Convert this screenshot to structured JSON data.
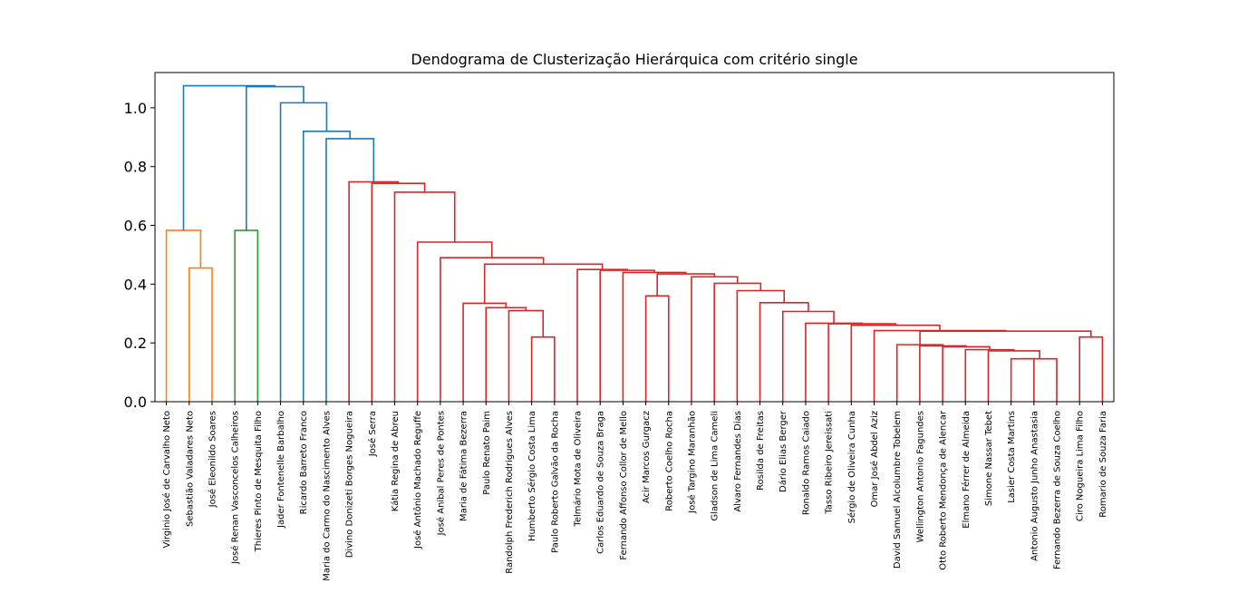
{
  "chart_data": {
    "type": "dendrogram",
    "title": "Dendograma de Clusterização Hierárquica com critério single",
    "xlabel": "",
    "ylabel": "",
    "ylim": [
      0,
      1.12
    ],
    "yticks": [
      "0.0",
      "0.2",
      "0.4",
      "0.6",
      "0.8",
      "1.0"
    ],
    "grid": false,
    "leaves": [
      "Virginio José de Carvalho Neto",
      "Sebastião Valadares Neto",
      "José Eleonildo Soares",
      "José Renan Vasconcelos Calheiros",
      "Thieres Pinto de Mesquita Filho",
      "Jader Fontenelle Barbalho",
      "Ricardo Barreto Franco",
      "Maria do Carmo do Nascimento Alves",
      "Divino Donizeti Borges Nogueira",
      "José Serra",
      "Kátia Regina de Abreu",
      "José Antônio Machado Reguffe",
      "José Aníbal Peres de Pontes",
      "Maria de Fátima Bezerra",
      "Paulo Renato Paim",
      "Randolph Frederich Rodrigues Alves",
      "Humberto Sérgio Costa Lima",
      "Paulo Roberto Galvão da Rocha",
      "Telmário Mota de Oliveira",
      "Carlos Eduardo de Souza Braga",
      "Fernando Affonso Collor de Mello",
      "Acir Marcos Gurgacz",
      "Roberto Coelho Rocha",
      "José Targino Maranhão",
      "Gladson de Lima Cameli",
      "Alvaro Fernandes Dias",
      "Rosilda de Freitas",
      "Dário Elias Berger",
      "Ronaldo Ramos Caiado",
      "Tasso Ribeiro Jereissati",
      "Sérgio de Oliveira Cunha",
      "Omar José Abdel Aziz",
      "David Samuel Alcolumbre Tobelem",
      "Wellington Antonio Fagundes",
      "Otto Roberto Mendonça de Alencar",
      "Elmano Férrer de Almeida",
      "Simone Nassar Tebet",
      "Lasier Costa Martins",
      "Antonio Augusto Junho Anastasia",
      "Fernando Bezerra de Souza Coelho",
      "Ciro Nogueira Lima Filho",
      "Romario de Souza Faria"
    ],
    "colors": {
      "orange": "#ff7f0e",
      "green": "#2ca02c",
      "red": "#d62728",
      "blue": "#1f77b4"
    },
    "merges": [
      {
        "a": "L1",
        "b": "L2",
        "height": 0.455,
        "color": "orange"
      },
      {
        "a": "L0",
        "b": "C0",
        "height": 0.583,
        "color": "orange"
      },
      {
        "a": "L3",
        "b": "L4",
        "height": 0.583,
        "color": "green"
      },
      {
        "a": "L37",
        "b": "L38",
        "height": 0.146,
        "color": "red"
      },
      {
        "a": "C3",
        "b": "L39",
        "height": 0.146,
        "color": "red"
      },
      {
        "a": "L36",
        "b": "C4",
        "height": 0.173,
        "color": "red"
      },
      {
        "a": "L35",
        "b": "C5",
        "height": 0.177,
        "color": "red"
      },
      {
        "a": "L34",
        "b": "C6",
        "height": 0.187,
        "color": "red"
      },
      {
        "a": "L33",
        "b": "C7",
        "height": 0.19,
        "color": "red"
      },
      {
        "a": "L32",
        "b": "C8",
        "height": 0.194,
        "color": "red"
      },
      {
        "a": "L40",
        "b": "L41",
        "height": 0.22,
        "color": "red"
      },
      {
        "a": "C9",
        "b": "C10",
        "height": 0.24,
        "color": "red"
      },
      {
        "a": "L31",
        "b": "C11",
        "height": 0.242,
        "color": "red"
      },
      {
        "a": "L30",
        "b": "C12",
        "height": 0.26,
        "color": "red"
      },
      {
        "a": "L29",
        "b": "C13",
        "height": 0.265,
        "color": "red"
      },
      {
        "a": "L28",
        "b": "C14",
        "height": 0.267,
        "color": "red"
      },
      {
        "a": "L27",
        "b": "C15",
        "height": 0.307,
        "color": "red"
      },
      {
        "a": "L26",
        "b": "C16",
        "height": 0.337,
        "color": "red"
      },
      {
        "a": "L25",
        "b": "C17",
        "height": 0.378,
        "color": "red"
      },
      {
        "a": "L24",
        "b": "C18",
        "height": 0.403,
        "color": "red"
      },
      {
        "a": "L23",
        "b": "C19",
        "height": 0.425,
        "color": "red"
      },
      {
        "a": "L21",
        "b": "L22",
        "height": 0.36,
        "color": "red"
      },
      {
        "a": "C21",
        "b": "C20",
        "height": 0.435,
        "color": "red"
      },
      {
        "a": "L20",
        "b": "C22",
        "height": 0.44,
        "color": "red"
      },
      {
        "a": "L19",
        "b": "C23",
        "height": 0.447,
        "color": "red"
      },
      {
        "a": "L16",
        "b": "L17",
        "height": 0.22,
        "color": "red"
      },
      {
        "a": "L15",
        "b": "C25",
        "height": 0.31,
        "color": "red"
      },
      {
        "a": "L14",
        "b": "C26",
        "height": 0.32,
        "color": "red"
      },
      {
        "a": "L13",
        "b": "C27",
        "height": 0.335,
        "color": "red"
      },
      {
        "a": "L18",
        "b": "C24",
        "height": 0.45,
        "color": "red"
      },
      {
        "a": "C28",
        "b": "C29",
        "height": 0.468,
        "color": "red"
      },
      {
        "a": "L12",
        "b": "C30",
        "height": 0.49,
        "color": "red"
      },
      {
        "a": "L11",
        "b": "C31",
        "height": 0.543,
        "color": "red"
      },
      {
        "a": "L10",
        "b": "C32",
        "height": 0.713,
        "color": "red"
      },
      {
        "a": "L9",
        "b": "C33",
        "height": 0.743,
        "color": "red"
      },
      {
        "a": "L8",
        "b": "C34",
        "height": 0.748,
        "color": "red"
      },
      {
        "a": "L7",
        "b": "C35",
        "height": 0.895,
        "color": "blue"
      },
      {
        "a": "L6",
        "b": "C36",
        "height": 0.92,
        "color": "blue"
      },
      {
        "a": "L5",
        "b": "C37",
        "height": 1.017,
        "color": "blue"
      },
      {
        "a": "C2",
        "b": "C38",
        "height": 1.072,
        "color": "blue"
      },
      {
        "a": "C1",
        "b": "C39",
        "height": 1.075,
        "color": "blue"
      }
    ]
  }
}
